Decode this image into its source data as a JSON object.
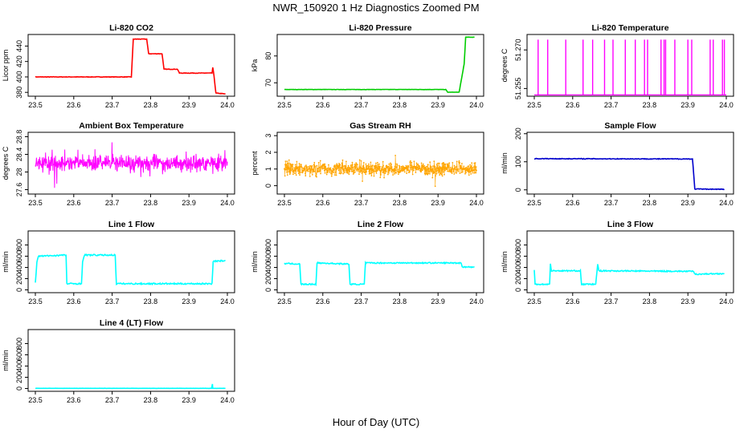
{
  "figure": {
    "title": "NWR_150920  1 Hz Diagnostics Zoomed PM",
    "xlabel": "Hour of Day (UTC)"
  },
  "chart_data": [
    {
      "type": "line",
      "title": "Li-820 CO2",
      "ylabel": "Licor ppm",
      "color": "#ff0000",
      "xlim": [
        23.5,
        24.0
      ],
      "ylim": [
        375,
        455
      ],
      "x_ticks": [
        23.5,
        23.6,
        23.7,
        23.8,
        23.9,
        24.0
      ],
      "y_ticks": [
        380,
        400,
        420,
        440
      ],
      "noise": 0.3,
      "x": [
        23.5,
        23.75,
        23.755,
        23.79,
        23.795,
        23.83,
        23.835,
        23.87,
        23.875,
        23.96,
        23.962,
        23.965,
        23.97,
        23.995
      ],
      "y": [
        400,
        400,
        449,
        449,
        430,
        430,
        410,
        410,
        405,
        405,
        412,
        402,
        379,
        378
      ]
    },
    {
      "type": "line",
      "title": "Li-820 Pressure",
      "ylabel": "kPa",
      "color": "#00cc00",
      "xlim": [
        23.5,
        24.0
      ],
      "ylim": [
        65,
        88
      ],
      "x_ticks": [
        23.5,
        23.6,
        23.7,
        23.8,
        23.9,
        24.0
      ],
      "y_ticks": [
        70,
        80
      ],
      "noise": 0.05,
      "x": [
        23.5,
        23.92,
        23.925,
        23.955,
        23.968,
        23.972,
        23.995
      ],
      "y": [
        67.5,
        67.5,
        66.5,
        66.5,
        77,
        87,
        87
      ]
    },
    {
      "type": "spikes",
      "title": "Li-820 Temperature",
      "ylabel": "degrees C",
      "color": "#ff00ff",
      "xlim": [
        23.5,
        24.0
      ],
      "ylim": [
        51.252,
        51.276
      ],
      "x_ticks": [
        23.5,
        23.6,
        23.7,
        23.8,
        23.9,
        24.0
      ],
      "y_ticks": [
        51.255,
        51.27
      ],
      "y_tick_labels": [
        "51.255",
        "51.270"
      ],
      "base": 51.2525,
      "spike_x": [
        23.51,
        23.535,
        23.582,
        23.627,
        23.652,
        23.683,
        23.705,
        23.737,
        23.763,
        23.787,
        23.795,
        23.83,
        23.838,
        23.842,
        23.866,
        23.9,
        23.91,
        23.958,
        23.966,
        23.99,
        23.995
      ],
      "spike_y": [
        51.274,
        51.274,
        51.274,
        51.274,
        51.274,
        51.274,
        51.274,
        51.274,
        51.274,
        51.274,
        51.274,
        51.274,
        51.274,
        51.274,
        51.274,
        51.274,
        51.274,
        51.274,
        51.274,
        51.274,
        51.274
      ]
    },
    {
      "type": "noise",
      "title": "Ambient Box Temperature",
      "ylabel": "degrees C",
      "color": "#ff00ff",
      "xlim": [
        23.5,
        24.0
      ],
      "ylim": [
        27.5,
        28.9
      ],
      "x_ticks": [
        23.5,
        23.6,
        23.7,
        23.8,
        23.9,
        24.0
      ],
      "y_ticks": [
        27.6,
        28.0,
        28.4,
        28.8
      ],
      "mean": 28.2,
      "amplitude": 0.25,
      "n": 700
    },
    {
      "type": "noise",
      "title": "Gas Stream RH",
      "ylabel": "percent",
      "color": "#ffa500",
      "xlim": [
        23.5,
        24.0
      ],
      "ylim": [
        -0.5,
        3.2
      ],
      "x_ticks": [
        23.5,
        23.6,
        23.7,
        23.8,
        23.9,
        24.0
      ],
      "y_ticks": [
        0,
        1,
        2,
        3
      ],
      "mean": 1.0,
      "amplitude": 0.6,
      "n": 700,
      "points": true
    },
    {
      "type": "line",
      "title": "Sample Flow",
      "ylabel": "ml/min",
      "color": "#0000cc",
      "xlim": [
        23.5,
        24.0
      ],
      "ylim": [
        -15,
        205
      ],
      "x_ticks": [
        23.5,
        23.6,
        23.7,
        23.8,
        23.9,
        24.0
      ],
      "y_ticks": [
        0,
        100,
        200
      ],
      "noise": 1.2,
      "x": [
        23.5,
        23.912,
        23.918,
        23.995
      ],
      "y": [
        111,
        110,
        3,
        2
      ]
    },
    {
      "type": "line",
      "title": "Line 1 Flow",
      "ylabel": "ml/min",
      "color": "#00ffff",
      "xlim": [
        23.5,
        24.0
      ],
      "ylim": [
        -50,
        1050
      ],
      "x_ticks": [
        23.5,
        23.6,
        23.7,
        23.8,
        23.9,
        24.0
      ],
      "y_ticks": [
        0,
        200,
        400,
        600,
        800
      ],
      "noise": 12,
      "x": [
        23.5,
        23.504,
        23.508,
        23.58,
        23.582,
        23.62,
        23.623,
        23.628,
        23.708,
        23.711,
        23.96,
        23.963,
        23.995
      ],
      "y": [
        120,
        500,
        600,
        620,
        110,
        110,
        500,
        620,
        620,
        110,
        110,
        510,
        520
      ]
    },
    {
      "type": "line",
      "title": "Line 2 Flow",
      "ylabel": "ml/min",
      "color": "#00ffff",
      "xlim": [
        23.5,
        24.0
      ],
      "ylim": [
        -50,
        1050
      ],
      "x_ticks": [
        23.5,
        23.6,
        23.7,
        23.8,
        23.9,
        24.0
      ],
      "y_ticks": [
        0,
        200,
        400,
        600,
        800
      ],
      "noise": 10,
      "x": [
        23.5,
        23.54,
        23.543,
        23.582,
        23.585,
        23.668,
        23.671,
        23.708,
        23.711,
        23.96,
        23.963,
        23.995
      ],
      "y": [
        470,
        460,
        100,
        100,
        480,
        460,
        100,
        100,
        480,
        480,
        410,
        405
      ]
    },
    {
      "type": "line",
      "title": "Line 3 Flow",
      "ylabel": "ml/min",
      "color": "#00ffff",
      "xlim": [
        23.5,
        24.0
      ],
      "ylim": [
        -50,
        1050
      ],
      "x_ticks": [
        23.5,
        23.6,
        23.7,
        23.8,
        23.9,
        24.0
      ],
      "y_ticks": [
        0,
        200,
        400,
        600,
        800
      ],
      "noise": 10,
      "x": [
        23.5,
        23.502,
        23.505,
        23.54,
        23.542,
        23.545,
        23.62,
        23.623,
        23.66,
        23.665,
        23.668,
        23.915,
        23.918,
        23.995
      ],
      "y": [
        350,
        100,
        100,
        100,
        460,
        340,
        340,
        100,
        100,
        460,
        340,
        330,
        280,
        290
      ]
    },
    {
      "type": "line",
      "title": "Line 4 (LT) Flow",
      "ylabel": "ml/min",
      "color": "#00ffff",
      "xlim": [
        23.5,
        24.0
      ],
      "ylim": [
        -50,
        1050
      ],
      "x_ticks": [
        23.5,
        23.6,
        23.7,
        23.8,
        23.9,
        24.0
      ],
      "y_ticks": [
        0,
        200,
        400,
        600,
        800
      ],
      "noise": 1,
      "x": [
        23.5,
        23.959,
        23.961,
        23.962,
        23.964,
        23.995
      ],
      "y": [
        3,
        3,
        80,
        4,
        3,
        3
      ]
    }
  ]
}
